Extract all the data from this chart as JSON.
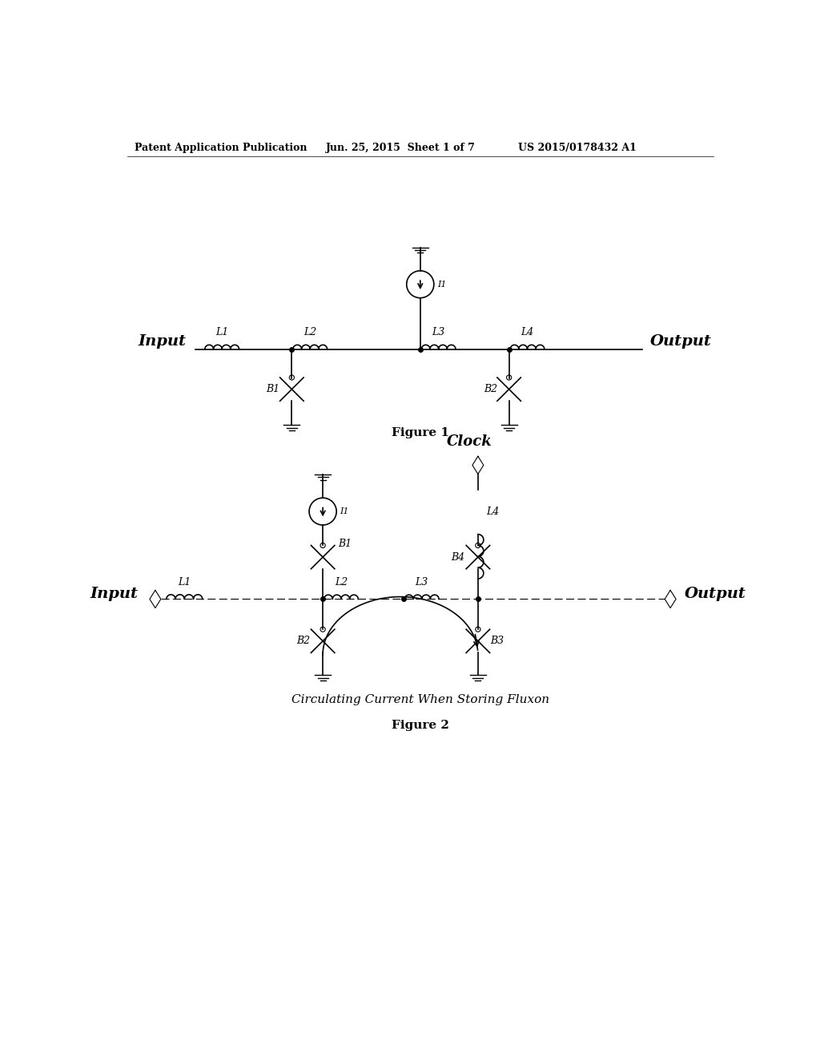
{
  "bg_color": "#ffffff",
  "header_text1": "Patent Application Publication",
  "header_text2": "Jun. 25, 2015  Sheet 1 of 7",
  "header_text3": "US 2015/0178432 A1",
  "fig1_caption": "Figure 1",
  "fig2_caption": "Figure 2",
  "fig2_subcaption": "Circulating Current When Storing Fluxon"
}
